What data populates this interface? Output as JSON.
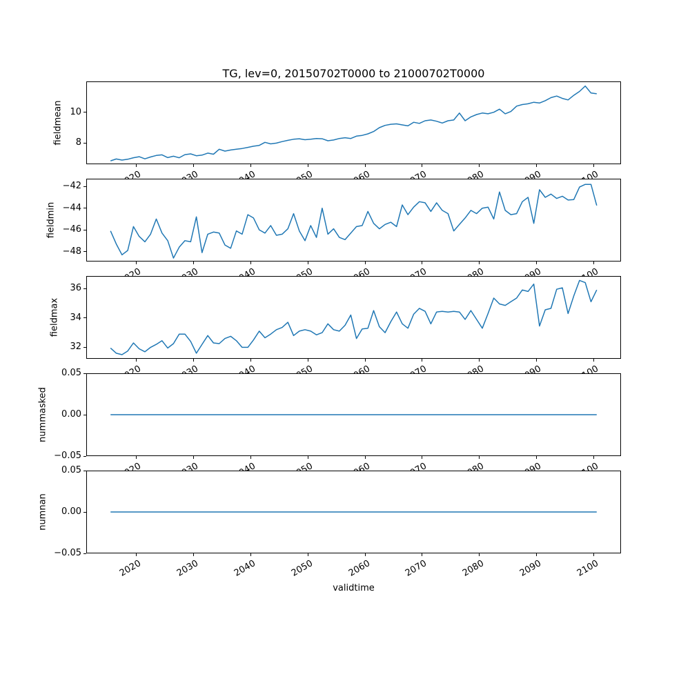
{
  "title": "TG, lev=0, 20150702T0000 to 21000702T0000",
  "line_color": "#1f77b4",
  "x_axis": {
    "label": "validtime",
    "lim": [
      2011.25,
      2104.75
    ],
    "ticks": [
      {
        "v": 2020,
        "label": "2020"
      },
      {
        "v": 2030,
        "label": "2030"
      },
      {
        "v": 2040,
        "label": "2040"
      },
      {
        "v": 2050,
        "label": "2050"
      },
      {
        "v": 2060,
        "label": "2060"
      },
      {
        "v": 2070,
        "label": "2070"
      },
      {
        "v": 2080,
        "label": "2080"
      },
      {
        "v": 2090,
        "label": "2090"
      },
      {
        "v": 2100,
        "label": "2100"
      }
    ]
  },
  "chart_data": [
    {
      "type": "line",
      "name": "fieldmean",
      "ylabel": "fieldmean",
      "ylim": [
        6.63,
        12.0
      ],
      "yticks": [
        {
          "v": 8,
          "label": "8"
        },
        {
          "v": 10,
          "label": "10"
        }
      ],
      "x_start": 2015.5,
      "x_step": 1,
      "values": [
        6.85,
        6.97,
        6.9,
        6.95,
        7.05,
        7.12,
        6.98,
        7.1,
        7.2,
        7.24,
        7.06,
        7.15,
        7.05,
        7.25,
        7.3,
        7.18,
        7.22,
        7.35,
        7.28,
        7.6,
        7.48,
        7.55,
        7.6,
        7.65,
        7.72,
        7.8,
        7.85,
        8.05,
        7.95,
        8.0,
        8.1,
        8.18,
        8.25,
        8.28,
        8.22,
        8.25,
        8.3,
        8.28,
        8.15,
        8.2,
        8.3,
        8.35,
        8.3,
        8.45,
        8.5,
        8.6,
        8.75,
        9.0,
        9.15,
        9.22,
        9.25,
        9.18,
        9.12,
        9.35,
        9.28,
        9.45,
        9.5,
        9.42,
        9.3,
        9.45,
        9.5,
        9.95,
        9.45,
        9.7,
        9.85,
        9.95,
        9.9,
        10.0,
        10.2,
        9.9,
        10.05,
        10.4,
        10.5,
        10.55,
        10.65,
        10.6,
        10.75,
        10.95,
        11.05,
        10.9,
        10.8,
        11.1,
        11.35,
        11.7,
        11.25,
        11.2
      ]
    },
    {
      "type": "line",
      "name": "fieldmin",
      "ylabel": "fieldmin",
      "ylim": [
        -48.92,
        -41.28
      ],
      "yticks": [
        {
          "v": -48,
          "label": "−48"
        },
        {
          "v": -46,
          "label": "−46"
        },
        {
          "v": -44,
          "label": "−44"
        },
        {
          "v": -42,
          "label": "−42"
        }
      ],
      "x_start": 2015.5,
      "x_step": 1,
      "values": [
        -46.1,
        -47.3,
        -48.3,
        -47.9,
        -45.7,
        -46.6,
        -47.1,
        -46.4,
        -45.0,
        -46.3,
        -47.0,
        -48.6,
        -47.6,
        -47.0,
        -47.1,
        -44.8,
        -48.1,
        -46.4,
        -46.2,
        -46.3,
        -47.4,
        -47.7,
        -46.1,
        -46.4,
        -44.6,
        -44.9,
        -46.0,
        -46.3,
        -45.6,
        -46.5,
        -46.4,
        -45.9,
        -44.5,
        -46.1,
        -47.0,
        -45.6,
        -46.7,
        -44.0,
        -46.4,
        -45.9,
        -46.7,
        -46.9,
        -46.3,
        -45.7,
        -45.6,
        -44.3,
        -45.4,
        -45.9,
        -45.5,
        -45.3,
        -45.7,
        -43.7,
        -44.6,
        -43.9,
        -43.4,
        -43.5,
        -44.3,
        -43.5,
        -44.2,
        -44.5,
        -46.1,
        -45.5,
        -44.9,
        -44.2,
        -44.5,
        -44.0,
        -43.9,
        -45.0,
        -42.5,
        -44.2,
        -44.6,
        -44.5,
        -43.4,
        -43.0,
        -45.4,
        -42.3,
        -43.0,
        -42.7,
        -43.1,
        -42.9,
        -43.25,
        -43.2,
        -42.05,
        -41.8,
        -41.8,
        -43.75
      ]
    },
    {
      "type": "line",
      "name": "fieldmax",
      "ylabel": "fieldmax",
      "ylim": [
        31.22,
        36.85
      ],
      "yticks": [
        {
          "v": 32,
          "label": "32"
        },
        {
          "v": 34,
          "label": "34"
        },
        {
          "v": 36,
          "label": "36"
        }
      ],
      "x_start": 2015.5,
      "x_step": 1,
      "values": [
        31.95,
        31.6,
        31.5,
        31.75,
        32.3,
        31.9,
        31.7,
        32.0,
        32.2,
        32.45,
        31.95,
        32.25,
        32.9,
        32.9,
        32.4,
        31.6,
        32.2,
        32.8,
        32.3,
        32.25,
        32.6,
        32.75,
        32.45,
        32.0,
        32.0,
        32.5,
        33.1,
        32.65,
        32.9,
        33.2,
        33.35,
        33.7,
        32.8,
        33.1,
        33.2,
        33.1,
        32.85,
        33.0,
        33.6,
        33.2,
        33.1,
        33.5,
        34.2,
        32.6,
        33.25,
        33.3,
        34.5,
        33.4,
        33.0,
        33.75,
        34.4,
        33.6,
        33.3,
        34.25,
        34.65,
        34.45,
        33.6,
        34.4,
        34.45,
        34.4,
        34.45,
        34.4,
        33.9,
        34.5,
        33.9,
        33.3,
        34.3,
        35.35,
        34.95,
        34.85,
        35.1,
        35.35,
        35.9,
        35.8,
        36.3,
        33.45,
        34.55,
        34.65,
        35.95,
        36.05,
        34.3,
        35.5,
        36.55,
        36.4,
        35.1,
        35.9
      ]
    },
    {
      "type": "line",
      "name": "nummasked",
      "ylabel": "nummasked",
      "ylim": [
        -0.05,
        0.05
      ],
      "yticks": [
        {
          "v": -0.05,
          "label": "−0.05"
        },
        {
          "v": 0,
          "label": "0.00"
        },
        {
          "v": 0.05,
          "label": "0.05"
        }
      ],
      "x_start": 2015.5,
      "x_step": 1,
      "values": [
        0,
        0,
        0,
        0,
        0,
        0,
        0,
        0,
        0,
        0,
        0,
        0,
        0,
        0,
        0,
        0,
        0,
        0,
        0,
        0,
        0,
        0,
        0,
        0,
        0,
        0,
        0,
        0,
        0,
        0,
        0,
        0,
        0,
        0,
        0,
        0,
        0,
        0,
        0,
        0,
        0,
        0,
        0,
        0,
        0,
        0,
        0,
        0,
        0,
        0,
        0,
        0,
        0,
        0,
        0,
        0,
        0,
        0,
        0,
        0,
        0,
        0,
        0,
        0,
        0,
        0,
        0,
        0,
        0,
        0,
        0,
        0,
        0,
        0,
        0,
        0,
        0,
        0,
        0,
        0,
        0,
        0,
        0,
        0,
        0,
        0
      ]
    },
    {
      "type": "line",
      "name": "numnan",
      "ylabel": "numnan",
      "ylim": [
        -0.05,
        0.05
      ],
      "yticks": [
        {
          "v": -0.05,
          "label": "−0.05"
        },
        {
          "v": 0,
          "label": "0.00"
        },
        {
          "v": 0.05,
          "label": "0.05"
        }
      ],
      "x_start": 2015.5,
      "x_step": 1,
      "values": [
        0,
        0,
        0,
        0,
        0,
        0,
        0,
        0,
        0,
        0,
        0,
        0,
        0,
        0,
        0,
        0,
        0,
        0,
        0,
        0,
        0,
        0,
        0,
        0,
        0,
        0,
        0,
        0,
        0,
        0,
        0,
        0,
        0,
        0,
        0,
        0,
        0,
        0,
        0,
        0,
        0,
        0,
        0,
        0,
        0,
        0,
        0,
        0,
        0,
        0,
        0,
        0,
        0,
        0,
        0,
        0,
        0,
        0,
        0,
        0,
        0,
        0,
        0,
        0,
        0,
        0,
        0,
        0,
        0,
        0,
        0,
        0,
        0,
        0,
        0,
        0,
        0,
        0,
        0,
        0,
        0,
        0,
        0,
        0,
        0,
        0
      ]
    }
  ]
}
